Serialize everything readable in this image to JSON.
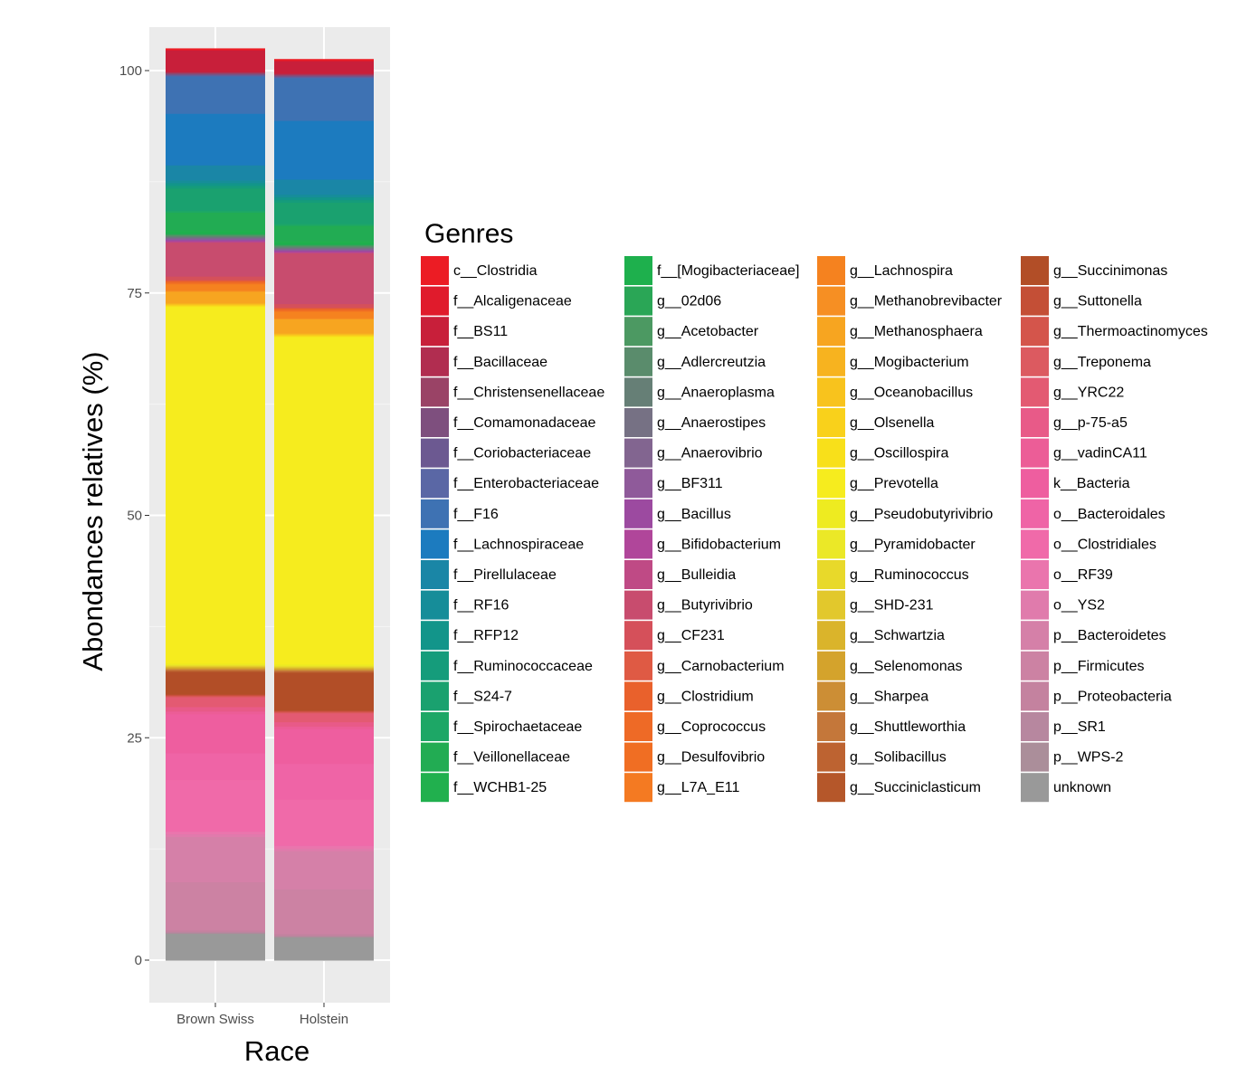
{
  "chart_data": {
    "type": "bar",
    "stacked": true,
    "categories": [
      "Brown Swiss",
      "Holstein"
    ],
    "xlabel": "Race",
    "ylabel": "Abondances relatives (%)",
    "ylim": [
      0,
      100
    ],
    "yticks": [
      0,
      25,
      50,
      75,
      100
    ],
    "grid": true,
    "legend_title": "Genres",
    "legend_position": "right",
    "series": [
      {
        "name": "unknown",
        "color": "#999999",
        "values": [
          3.0,
          2.6
        ]
      },
      {
        "name": "p__WPS-2",
        "color": "#ab8e9a",
        "values": [
          0.1,
          0.1
        ]
      },
      {
        "name": "p__SR1",
        "color": "#b7879f",
        "values": [
          0.1,
          0.1
        ]
      },
      {
        "name": "p__Proteobacteria",
        "color": "#c4829f",
        "values": [
          0.2,
          0.2
        ]
      },
      {
        "name": "p__Firmicutes",
        "color": "#cc82a3",
        "values": [
          5.4,
          5.0
        ]
      },
      {
        "name": "p__Bacteroidetes",
        "color": "#d580a8",
        "values": [
          5.1,
          4.3
        ]
      },
      {
        "name": "o__YS2",
        "color": "#e07bac",
        "values": [
          0.3,
          0.3
        ]
      },
      {
        "name": "o__RF39",
        "color": "#ea75ad",
        "values": [
          0.3,
          0.3
        ]
      },
      {
        "name": "o__Clostridiales",
        "color": "#f06aa9",
        "values": [
          5.8,
          5.2
        ]
      },
      {
        "name": "o__Bacteroidales",
        "color": "#ef64a6",
        "values": [
          3.0,
          4.0
        ]
      },
      {
        "name": "k__Bacteria",
        "color": "#ee5e9f",
        "values": [
          4.4,
          3.9
        ]
      },
      {
        "name": "g__vadinCA11",
        "color": "#ec5d97",
        "values": [
          0.3,
          0.3
        ]
      },
      {
        "name": "g__p-75-a5",
        "color": "#e85a88",
        "values": [
          0.5,
          0.5
        ]
      },
      {
        "name": "g__YRC22",
        "color": "#e35a72",
        "values": [
          1.1,
          1.0
        ]
      },
      {
        "name": "g__Treponema",
        "color": "#dc5a60",
        "values": [
          0.1,
          0.1
        ]
      },
      {
        "name": "g__Thermoactinomyces",
        "color": "#d4554b",
        "values": [
          0.1,
          0.1
        ]
      },
      {
        "name": "g__Suttonella",
        "color": "#c44f36",
        "values": [
          0.1,
          0.1
        ]
      },
      {
        "name": "g__Succinimonas",
        "color": "#b24e27",
        "values": [
          2.5,
          4.2
        ]
      },
      {
        "name": "g__Succiniclasticum",
        "color": "#b5572a",
        "values": [
          0.1,
          0.1
        ]
      },
      {
        "name": "g__Solibacillus",
        "color": "#bd6331",
        "values": [
          0.1,
          0.1
        ]
      },
      {
        "name": "g__Shuttleworthia",
        "color": "#c4773a",
        "values": [
          0.1,
          0.1
        ]
      },
      {
        "name": "g__Sharpea",
        "color": "#cc8e35",
        "values": [
          0.1,
          0.1
        ]
      },
      {
        "name": "g__Selenomonas",
        "color": "#d4a32c",
        "values": [
          0.1,
          0.1
        ]
      },
      {
        "name": "g__Schwartzia",
        "color": "#dab42b",
        "values": [
          0.1,
          0.1
        ]
      },
      {
        "name": "g__SHD-231",
        "color": "#e2c82c",
        "values": [
          0.1,
          0.1
        ]
      },
      {
        "name": "g__Ruminococcus",
        "color": "#e8d92a",
        "values": [
          0.1,
          0.1
        ]
      },
      {
        "name": "g__Pyramidobacter",
        "color": "#ebe827",
        "values": [
          0.1,
          0.1
        ]
      },
      {
        "name": "g__Pseudobutyrivibrio",
        "color": "#eeeb20",
        "values": [
          0.1,
          0.1
        ]
      },
      {
        "name": "g__Prevotella",
        "color": "#f6ec1e",
        "values": [
          40.1,
          36.8
        ]
      },
      {
        "name": "g__Oscillospira",
        "color": "#f8e01a",
        "values": [
          0.1,
          0.1
        ]
      },
      {
        "name": "g__Olsenella",
        "color": "#f9d11b",
        "values": [
          0.1,
          0.1
        ]
      },
      {
        "name": "g__Oceanobacillus",
        "color": "#f8c31d",
        "values": [
          0.1,
          0.1
        ]
      },
      {
        "name": "g__Mogibacterium",
        "color": "#f7b31f",
        "values": [
          0.1,
          0.1
        ]
      },
      {
        "name": "g__Methanosphaera",
        "color": "#f7a520",
        "values": [
          1.3,
          1.6
        ]
      },
      {
        "name": "g__Methanobrevibacter",
        "color": "#f68f23",
        "values": [
          0.1,
          0.1
        ]
      },
      {
        "name": "g__Lachnospira",
        "color": "#f5821f",
        "values": [
          0.7,
          0.7
        ]
      },
      {
        "name": "g__L7A_E11",
        "color": "#f47a22",
        "values": [
          0.1,
          0.1
        ]
      },
      {
        "name": "g__Desulfovibrio",
        "color": "#f06e23",
        "values": [
          0.1,
          0.1
        ]
      },
      {
        "name": "g__Coprococcus",
        "color": "#ee6a26",
        "values": [
          0.1,
          0.1
        ]
      },
      {
        "name": "g__Clostridium",
        "color": "#e9612c",
        "values": [
          0.1,
          0.1
        ]
      },
      {
        "name": "g__Carnobacterium",
        "color": "#df5a44",
        "values": [
          0.1,
          0.1
        ]
      },
      {
        "name": "g__CF231",
        "color": "#d5505a",
        "values": [
          0.4,
          0.4
        ]
      },
      {
        "name": "g__Butyrivibrio",
        "color": "#c84c6e",
        "values": [
          3.8,
          5.7
        ]
      },
      {
        "name": "g__Bulleidia",
        "color": "#bf4a85",
        "values": [
          0.1,
          0.1
        ]
      },
      {
        "name": "g__Bifidobacterium",
        "color": "#b0469a",
        "values": [
          0.1,
          0.1
        ]
      },
      {
        "name": "g__Bacillus",
        "color": "#9c4aa0",
        "values": [
          0.1,
          0.1
        ]
      },
      {
        "name": "g__BF311",
        "color": "#8f5a9a",
        "values": [
          0.1,
          0.1
        ]
      },
      {
        "name": "g__Anaerovibrio",
        "color": "#826590",
        "values": [
          0.1,
          0.1
        ]
      },
      {
        "name": "g__Anaerostipes",
        "color": "#767184",
        "values": [
          0.1,
          0.1
        ]
      },
      {
        "name": "g__Anaeroplasma",
        "color": "#667f76",
        "values": [
          0.1,
          0.1
        ]
      },
      {
        "name": "g__Adlercreutzia",
        "color": "#5a8c6c",
        "values": [
          0.1,
          0.1
        ]
      },
      {
        "name": "g__Acetobacter",
        "color": "#4c9962",
        "values": [
          0.1,
          0.1
        ]
      },
      {
        "name": "g__02d06",
        "color": "#2aa656",
        "values": [
          0.1,
          0.1
        ]
      },
      {
        "name": "f__[Mogibacteriaceae]",
        "color": "#1eb04d",
        "values": [
          0.2,
          0.2
        ]
      },
      {
        "name": "f__WCHB1-25",
        "color": "#21b04e",
        "values": [
          0.2,
          0.2
        ]
      },
      {
        "name": "f__Veillonellaceae",
        "color": "#22ac53",
        "values": [
          2.0,
          1.7
        ]
      },
      {
        "name": "f__Spirochaetaceae",
        "color": "#1da766",
        "values": [
          0.2,
          0.2
        ]
      },
      {
        "name": "f__S24-7",
        "color": "#1aa16f",
        "values": [
          2.5,
          2.4
        ]
      },
      {
        "name": "f__Ruminococcaceae",
        "color": "#159c7b",
        "values": [
          0.3,
          0.3
        ]
      },
      {
        "name": "f__RFP12",
        "color": "#12958a",
        "values": [
          0.3,
          0.3
        ]
      },
      {
        "name": "f__RF16",
        "color": "#168d99",
        "values": [
          0.3,
          0.3
        ]
      },
      {
        "name": "f__Pirellulaceae",
        "color": "#1a86a6",
        "values": [
          1.7,
          1.7
        ]
      },
      {
        "name": "f__Lachnospiraceae",
        "color": "#1c7bbf",
        "values": [
          5.8,
          6.6
        ]
      },
      {
        "name": "f__F16",
        "color": "#3e72b3",
        "values": [
          4.2,
          4.8
        ]
      },
      {
        "name": "f__Enterobacteriaceae",
        "color": "#5a67a5",
        "values": [
          0.1,
          0.1
        ]
      },
      {
        "name": "f__Coriobacteriaceae",
        "color": "#6c5991",
        "values": [
          0.1,
          0.1
        ]
      },
      {
        "name": "f__Comamonadaceae",
        "color": "#7e4f7e",
        "values": [
          0.1,
          0.1
        ]
      },
      {
        "name": "f__Christensenellaceae",
        "color": "#9a4366",
        "values": [
          0.1,
          0.1
        ]
      },
      {
        "name": "f__Bacillaceae",
        "color": "#b12d50",
        "values": [
          0.1,
          0.1
        ]
      },
      {
        "name": "f__BS11",
        "color": "#c81f3a",
        "values": [
          2.4,
          1.4
        ]
      },
      {
        "name": "f__Alcaligenaceae",
        "color": "#e01b2c",
        "values": [
          0.1,
          0.1
        ]
      },
      {
        "name": "c__Clostridia",
        "color": "#ec1c24",
        "values": [
          0.1,
          0.1
        ]
      }
    ]
  }
}
